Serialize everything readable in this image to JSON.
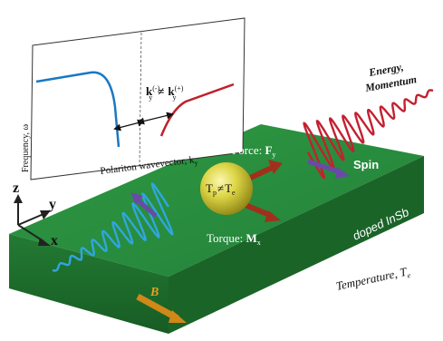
{
  "inset": {
    "y_axis_label": "Frequency, ω",
    "x_axis_label": "Polariton wavevector, k",
    "x_axis_sub": "y",
    "gap_k": "k",
    "gap_sup_minus": "(-)",
    "gap_sub_y": "y",
    "gap_neq": "≠",
    "gap_k2": "k",
    "gap_sup_plus": "(+)",
    "gap_sub_y2": "y"
  },
  "labels": {
    "energy": "Energy,",
    "momentum": "Momentum",
    "force": "Force: ",
    "force_bold": "F",
    "force_sub": "y",
    "torque": "Torque: ",
    "torque_bold": "M",
    "torque_sub": "x",
    "tp": "T",
    "tp_sub": "p",
    "neq": "≠",
    "te": "T",
    "te_sub": "e",
    "spin": "Spin",
    "material": "doped InSb",
    "temperature": "Temperature, T",
    "temperature_sub": "e",
    "b_field": "B",
    "axis_z": "z",
    "axis_y": "y",
    "axis_x": "x"
  },
  "colors": {
    "slab_top": "#2a8a3a",
    "slab_front": "#1f6e2e",
    "slab_side": "#16521f",
    "wave_blue": "#2fa6e0",
    "wave_red": "#c42030",
    "sphere": "#d8d040",
    "arrow_brown": "#a0301c",
    "arrow_purple": "#6a4aa8",
    "arrow_orange": "#d08818",
    "curve_blue": "#1a78c2",
    "curve_red": "#c0202a"
  }
}
